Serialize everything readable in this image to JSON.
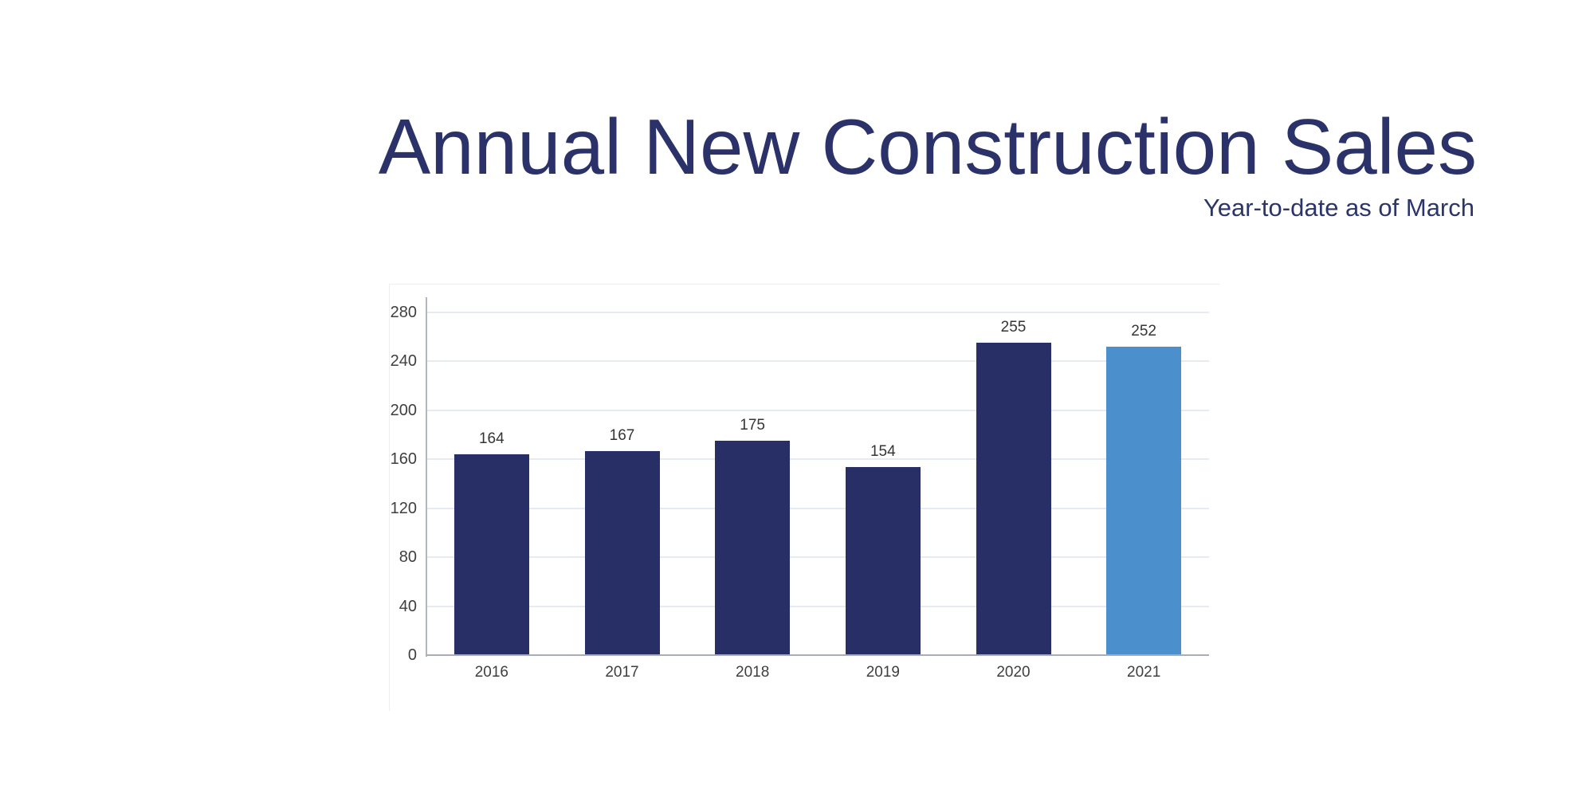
{
  "header": {
    "title": "Annual New Construction Sales",
    "subtitle": "Year-to-date as of March",
    "title_color": "#2b3269",
    "subtitle_color": "#2c356b"
  },
  "chart_data": {
    "type": "bar",
    "title": "Annual New Construction Sales",
    "subtitle": "Year-to-date as of March",
    "categories": [
      "2016",
      "2017",
      "2018",
      "2019",
      "2020",
      "2021"
    ],
    "values": [
      164,
      167,
      175,
      154,
      255,
      252
    ],
    "data_labels": [
      "164",
      "167",
      "175",
      "154",
      "255",
      "252"
    ],
    "xlabel": "",
    "ylabel": "",
    "ylim": [
      0,
      280
    ],
    "yticks": [
      0,
      40,
      80,
      120,
      160,
      200,
      240,
      280
    ],
    "grid": true,
    "legend": false,
    "bar_color_default": "#272f66",
    "bar_color_highlight": "#4b8fcc",
    "highlight_index": 5,
    "gridline_color": "#e6eaf2",
    "y_axis_line_color": "#b2b6c0",
    "x_axis_line_color": "#a9adb7",
    "tick_label_color": "#3f3f3f",
    "data_label_color": "#353535"
  }
}
